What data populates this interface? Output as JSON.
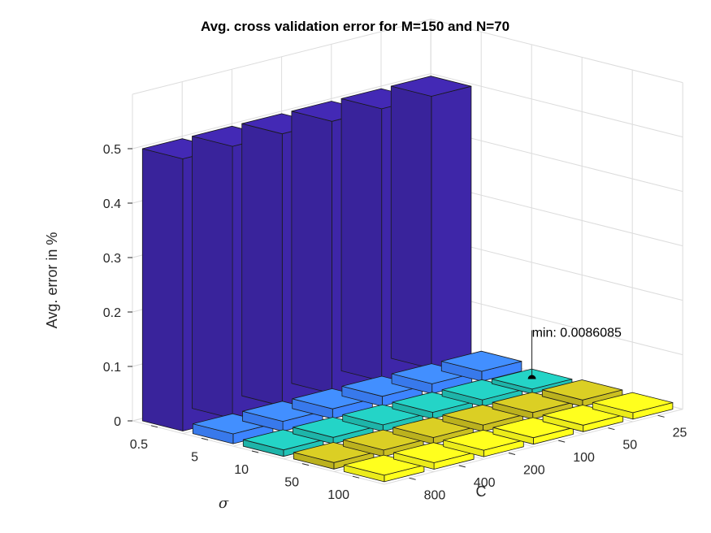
{
  "chart_data": {
    "type": "bar3",
    "title": "Avg. cross validation error for M=150 and  N=70",
    "xlabel": "C",
    "ylabel": "σ",
    "zlabel": "Avg. error in %",
    "x_categories": [
      "25",
      "50",
      "100",
      "200",
      "400",
      "800"
    ],
    "y_categories": [
      "0.5",
      "5",
      "10",
      "50",
      "100"
    ],
    "zlim": [
      0,
      0.5
    ],
    "z_ticks": [
      "0",
      "0.1",
      "0.2",
      "0.3",
      "0.4",
      "0.5"
    ],
    "grid": true,
    "values": [
      [
        0.5,
        0.5,
        0.5,
        0.5,
        0.5,
        0.5
      ],
      [
        0.018,
        0.018,
        0.018,
        0.018,
        0.018,
        0.018
      ],
      [
        0.0086085,
        0.012,
        0.012,
        0.012,
        0.012,
        0.012
      ],
      [
        0.012,
        0.012,
        0.012,
        0.012,
        0.012,
        0.012
      ],
      [
        0.012,
        0.012,
        0.012,
        0.012,
        0.012,
        0.012
      ]
    ],
    "row_colors": [
      "#3E26A8",
      "#3D84FF",
      "#21C4B8",
      "#CBC021",
      "#FFFF1C"
    ],
    "annotation": {
      "text": "min: 0.0086085",
      "x": "25",
      "y": "10",
      "value": 0.0086085
    }
  }
}
